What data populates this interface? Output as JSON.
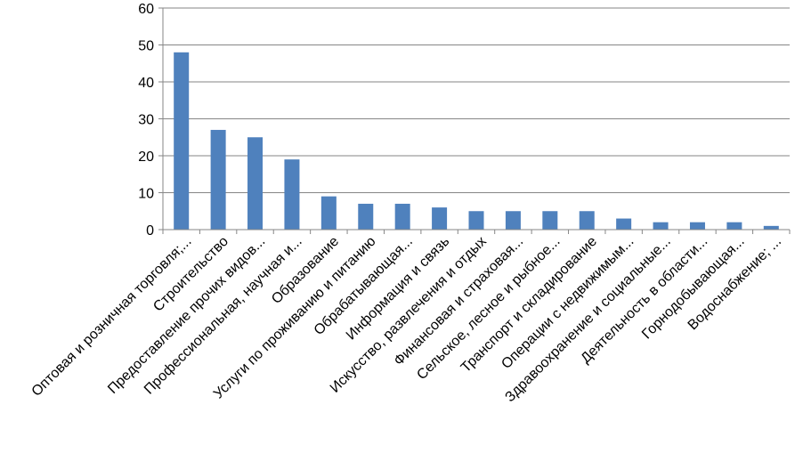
{
  "chart_data": {
    "type": "bar",
    "title": "",
    "xlabel": "",
    "ylabel": "",
    "ylim": [
      0,
      60
    ],
    "yticks": [
      0,
      10,
      20,
      30,
      40,
      50,
      60
    ],
    "grid": true,
    "legend": "none",
    "bar_color": "#4f81bd",
    "categories": [
      "Оптовая и розничная торговля;...",
      "Строительство",
      "Предоставление прочих видов...",
      "Профессиональная, научная и...",
      "Образование",
      "Услуги по проживанию и питанию",
      "Обрабатывающая...",
      "Информация и связь",
      "Искусство, развлечения и отдых",
      "Финансовая и страховая...",
      "Сельское, лесное и рыбное...",
      "Транспорт и складирование",
      "Операции с недвижимым...",
      "Здравоохранение и социальные...",
      "Деятельность в области...",
      "Горнодобывающая...",
      "Водоснабжение; ..."
    ],
    "values": [
      48,
      27,
      25,
      19,
      9,
      7,
      7,
      6,
      5,
      5,
      5,
      5,
      3,
      2,
      2,
      2,
      1
    ]
  }
}
